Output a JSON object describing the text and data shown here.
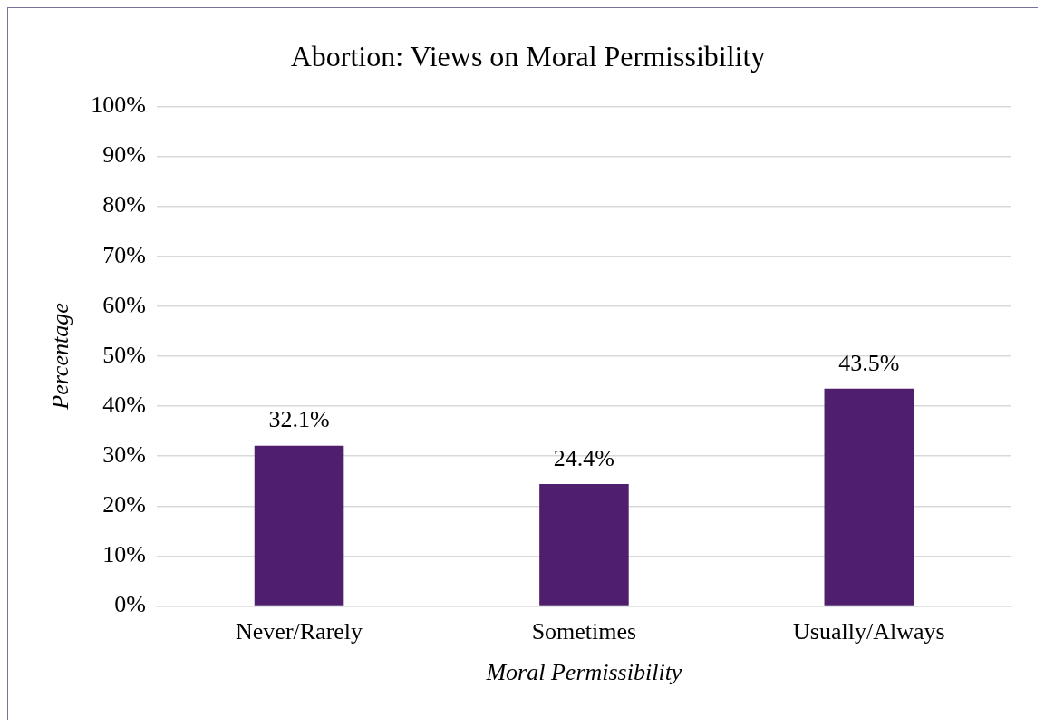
{
  "chart_data": {
    "type": "bar",
    "title": "Abortion: Views on Moral Permissibility",
    "xlabel": "Moral Permissibility",
    "ylabel": "Percentage",
    "categories": [
      "Never/Rarely",
      "Sometimes",
      "Usually/Always"
    ],
    "values": [
      32.1,
      24.4,
      43.5
    ],
    "color": "#4f1f6e",
    "value_labels": [
      "32.1%",
      "24.4%",
      "43.5%"
    ],
    "ylim": [
      0,
      100
    ],
    "yticks": [
      {
        "value": 0,
        "label": "0%"
      },
      {
        "value": 10,
        "label": "10%"
      },
      {
        "value": 20,
        "label": "20%"
      },
      {
        "value": 30,
        "label": "30%"
      },
      {
        "value": 40,
        "label": "40%"
      },
      {
        "value": 50,
        "label": "50%"
      },
      {
        "value": 60,
        "label": "60%"
      },
      {
        "value": 70,
        "label": "70%"
      },
      {
        "value": 80,
        "label": "80%"
      },
      {
        "value": 90,
        "label": "90%"
      },
      {
        "value": 100,
        "label": "100%"
      }
    ],
    "grid": "y",
    "legend": false
  }
}
